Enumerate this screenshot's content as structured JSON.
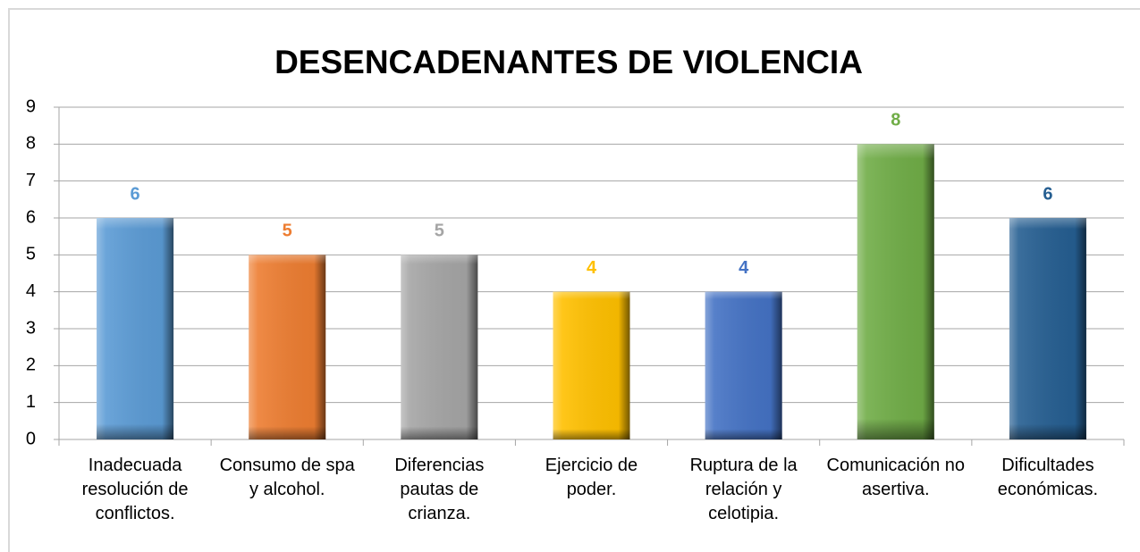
{
  "chart_data": {
    "type": "bar",
    "title": "DESENCADENANTES DE VIOLENCIA",
    "categories": [
      "Inadecuada resolución de conflictos.",
      "Consumo de spa y alcohol.",
      "Diferencias pautas de crianza.",
      "Ejercicio de poder.",
      "Ruptura de la relación y celotipia.",
      "Comunicación no asertiva.",
      "Dificultades económicas."
    ],
    "values": [
      6,
      5,
      5,
      4,
      4,
      8,
      6
    ],
    "colors": [
      "#5b9bd5",
      "#ed7d31",
      "#a5a5a5",
      "#ffc000",
      "#4472c4",
      "#70ad47",
      "#255e91"
    ],
    "ylim": [
      0,
      9
    ],
    "yticks": [
      0,
      1,
      2,
      3,
      4,
      5,
      6,
      7,
      8,
      9
    ],
    "grid": true
  }
}
